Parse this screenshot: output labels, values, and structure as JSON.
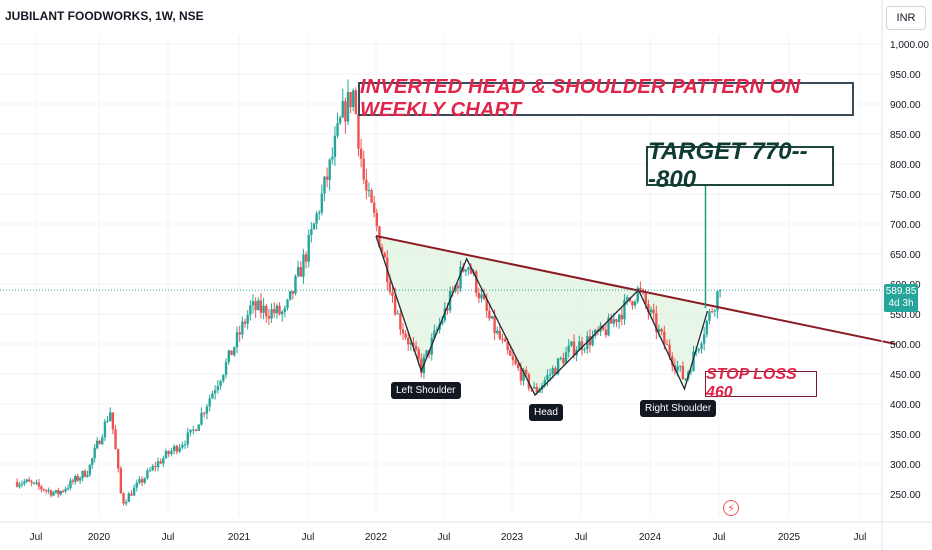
{
  "header": {
    "title": "JUBILANT FOODWORKS, 1W, NSE",
    "currency": "INR"
  },
  "annotations": {
    "banner": "INVERTED HEAD & SHOULDER PATTERN ON WEEKLY CHART",
    "target": "TARGET 770---800",
    "stop_loss": "STOP LOSS 460",
    "left_shoulder": "Left Shoulder",
    "head": "Head",
    "right_shoulder": "Right Shoulder"
  },
  "last_price": {
    "value": "589.85",
    "countdown": "4d 3h"
  },
  "colors": {
    "up": "#26a69a",
    "down": "#ef5350",
    "neckline": "#8b1a24",
    "pattern_fill": "#dff3df",
    "target_arrow": "#1f9d74"
  },
  "chart_data": {
    "type": "candlestick",
    "xlabel": "",
    "ylabel": "",
    "ylim": [
      210,
      1030
    ],
    "y_ticks": [
      250,
      300,
      350,
      400,
      450,
      500,
      550,
      600,
      650,
      700,
      750,
      800,
      850,
      900,
      950,
      1000
    ],
    "y_tick_labels": [
      "250.00",
      "300.00",
      "350.00",
      "400.00",
      "450.00",
      "500.00",
      "550.00",
      "600.00",
      "650.00",
      "700.00",
      "750.00",
      "800.00",
      "850.00",
      "900.00",
      "950.00",
      "1,000.00"
    ],
    "x_ticks": [
      "Jul",
      "2020",
      "Jul",
      "2021",
      "Jul",
      "2022",
      "Jul",
      "2023",
      "Jul",
      "2024",
      "Jul",
      "2025",
      "Jul"
    ],
    "grid": true,
    "approx_price_path": [
      [
        "2019-06",
        270
      ],
      [
        "2019-09",
        250
      ],
      [
        "2019-12",
        290
      ],
      [
        "2020-02",
        390
      ],
      [
        "2020-03",
        235
      ],
      [
        "2020-06",
        300
      ],
      [
        "2020-09",
        350
      ],
      [
        "2020-12",
        470
      ],
      [
        "2021-02",
        560
      ],
      [
        "2021-05",
        550
      ],
      [
        "2021-07",
        660
      ],
      [
        "2021-09",
        800
      ],
      [
        "2021-10",
        880
      ],
      [
        "2021-11",
        920
      ],
      [
        "2021-12",
        760
      ],
      [
        "2022-01",
        700
      ],
      [
        "2022-03",
        540
      ],
      [
        "2022-05",
        460
      ],
      [
        "2022-07",
        550
      ],
      [
        "2022-09",
        640
      ],
      [
        "2022-11",
        540
      ],
      [
        "2023-01",
        470
      ],
      [
        "2023-03",
        420
      ],
      [
        "2023-06",
        490
      ],
      [
        "2023-09",
        520
      ],
      [
        "2023-12",
        590
      ],
      [
        "2024-02",
        510
      ],
      [
        "2024-04",
        440
      ],
      [
        "2024-06",
        540
      ],
      [
        "2024-07",
        589.85
      ]
    ],
    "neckline": [
      [
        "2022-01",
        680
      ],
      [
        "2025-10",
        500
      ]
    ],
    "pattern_points": [
      {
        "label": "Left Shoulder",
        "date": "2022-05",
        "value": 455
      },
      {
        "label": "Head",
        "date": "2023-03",
        "value": 415
      },
      {
        "label": "Right Shoulder",
        "date": "2024-04",
        "value": 425
      }
    ]
  }
}
